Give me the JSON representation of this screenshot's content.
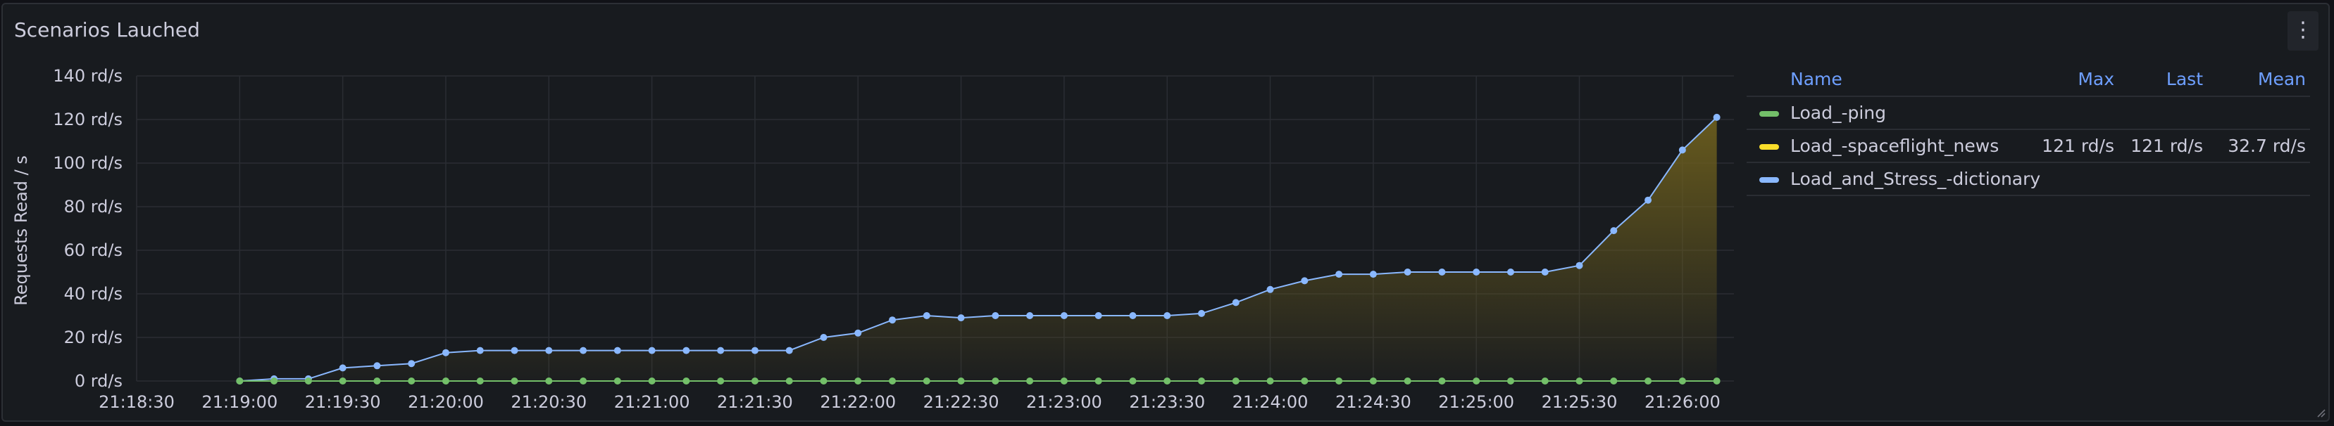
{
  "panel": {
    "title": "Scenarios Lauched",
    "menu_icon": "more-vertical-icon"
  },
  "legend": {
    "columns": {
      "name": "Name",
      "max": "Max",
      "last": "Last",
      "mean": "Mean"
    },
    "rows": [
      {
        "name": "Load_-ping",
        "color": "#73bf69",
        "max": "",
        "last": "",
        "mean": ""
      },
      {
        "name": "Load_-spaceflight_news",
        "color": "#fade2a",
        "max": "121 rd/s",
        "last": "121 rd/s",
        "mean": "32.7 rd/s"
      },
      {
        "name": "Load_and_Stress_-dictionary",
        "color": "#8ab8ff",
        "max": "",
        "last": "",
        "mean": ""
      }
    ]
  },
  "chart_data": {
    "type": "area",
    "ylabel": "Requests Read / s",
    "ylim": [
      0,
      140
    ],
    "yticks": [
      "0 rd/s",
      "20 rd/s",
      "40 rd/s",
      "60 rd/s",
      "80 rd/s",
      "100 rd/s",
      "120 rd/s",
      "140 rd/s"
    ],
    "xlim": [
      "21:18:30",
      "21:26:15"
    ],
    "xticks": [
      "21:18:30",
      "21:19:00",
      "21:19:30",
      "21:20:00",
      "21:20:30",
      "21:21:00",
      "21:21:30",
      "21:22:00",
      "21:22:30",
      "21:23:00",
      "21:23:30",
      "21:24:00",
      "21:24:30",
      "21:25:00",
      "21:25:30",
      "21:26:00"
    ],
    "grid": true,
    "legend_position": "right",
    "x": [
      "21:19:00",
      "21:19:10",
      "21:19:20",
      "21:19:30",
      "21:19:40",
      "21:19:50",
      "21:20:00",
      "21:20:10",
      "21:20:20",
      "21:20:30",
      "21:20:40",
      "21:20:50",
      "21:21:00",
      "21:21:10",
      "21:21:20",
      "21:21:30",
      "21:21:40",
      "21:21:50",
      "21:22:00",
      "21:22:10",
      "21:22:20",
      "21:22:30",
      "21:22:40",
      "21:22:50",
      "21:23:00",
      "21:23:10",
      "21:23:20",
      "21:23:30",
      "21:23:40",
      "21:23:50",
      "21:24:00",
      "21:24:10",
      "21:24:20",
      "21:24:30",
      "21:24:40",
      "21:24:50",
      "21:25:00",
      "21:25:10",
      "21:25:20",
      "21:25:30",
      "21:25:40",
      "21:25:50",
      "21:26:00",
      "21:26:10"
    ],
    "series": [
      {
        "name": "Load_-ping",
        "color": "#73bf69",
        "values": [
          0,
          0,
          0,
          0,
          0,
          0,
          0,
          0,
          0,
          0,
          0,
          0,
          0,
          0,
          0,
          0,
          0,
          0,
          0,
          0,
          0,
          0,
          0,
          0,
          0,
          0,
          0,
          0,
          0,
          0,
          0,
          0,
          0,
          0,
          0,
          0,
          0,
          0,
          0,
          0,
          0,
          0,
          0,
          0
        ]
      },
      {
        "name": "Load_and_Stress_-dictionary",
        "color": "#8ab8ff",
        "values": [
          0,
          1,
          1,
          6,
          7,
          8,
          13,
          14,
          14,
          14,
          14,
          14,
          14,
          14,
          14,
          14,
          14,
          20,
          22,
          28,
          30,
          29,
          30,
          30,
          30,
          30,
          30,
          30,
          31,
          36,
          42,
          46,
          49,
          49,
          50,
          50,
          50,
          50,
          50,
          53,
          69,
          83,
          106,
          121
        ]
      }
    ]
  }
}
